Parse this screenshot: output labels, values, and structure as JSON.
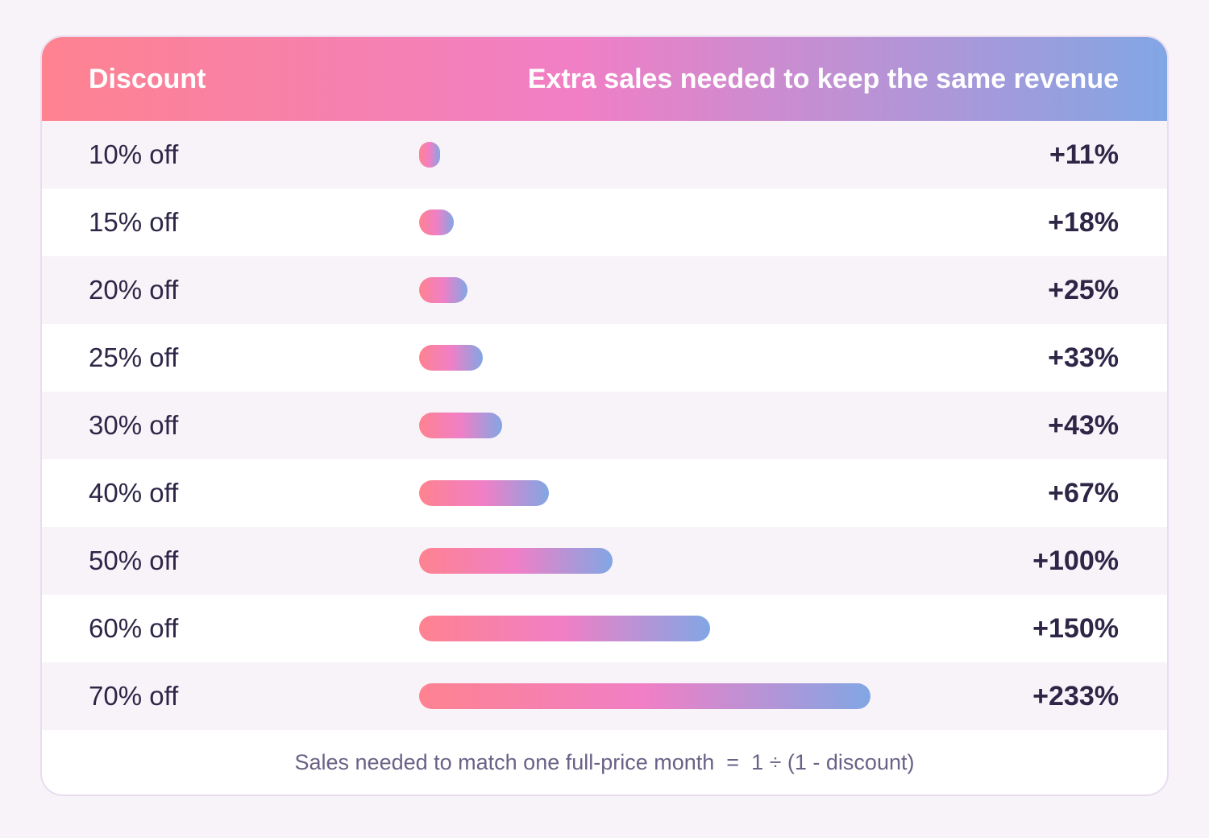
{
  "header": {
    "discount_label": "Discount",
    "extra_sales_label": "Extra sales needed to keep the same revenue"
  },
  "colors": {
    "gradient_start": "#fe8290",
    "gradient_mid": "#f07fc6",
    "gradient_end": "#82a6e4",
    "text_dark": "#2f2647",
    "background": "#f8f3f9"
  },
  "chart_data": {
    "type": "bar",
    "orientation": "horizontal",
    "categories": [
      "10% off",
      "15% off",
      "20% off",
      "25% off",
      "30% off",
      "40% off",
      "50% off",
      "60% off",
      "70% off"
    ],
    "values": [
      11,
      18,
      25,
      33,
      43,
      67,
      100,
      150,
      233
    ],
    "value_labels": [
      "+11%",
      "+18%",
      "+25%",
      "+33%",
      "+43%",
      "+67%",
      "+100%",
      "+150%",
      "+233%"
    ],
    "xlim": [
      0,
      233
    ],
    "grid": false
  },
  "footer": {
    "formula": "Sales needed to match one full-price month  =  1 ÷ (1 - discount)"
  }
}
